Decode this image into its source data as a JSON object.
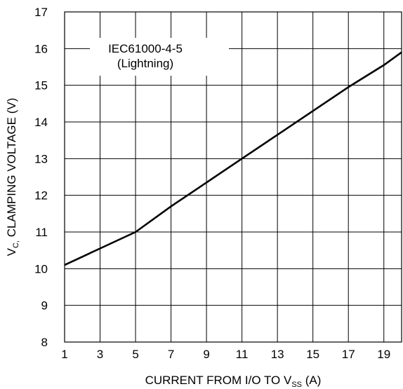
{
  "chart_data": {
    "type": "line",
    "annotation": [
      "IEC61000-4-5",
      "(Lightning)"
    ],
    "xlabel": {
      "main": "CURRENT FROM I/O TO V",
      "sub": "SS",
      "tail": " (A)"
    },
    "ylabel": {
      "main": "V",
      "sub": "C,",
      "tail": " CLAMPING VOLTAGE (V)"
    },
    "xlim": [
      1,
      20
    ],
    "ylim": [
      8,
      17
    ],
    "xticks": [
      1,
      3,
      5,
      7,
      9,
      11,
      13,
      15,
      17,
      19
    ],
    "yticks": [
      8,
      9,
      10,
      11,
      12,
      13,
      14,
      15,
      16,
      17
    ],
    "grid": true,
    "series": [
      {
        "x": [
          1,
          3,
          5,
          7,
          9,
          11,
          13,
          15,
          17,
          19,
          20
        ],
        "y": [
          10.1,
          10.55,
          11.0,
          11.7,
          12.35,
          13.0,
          13.65,
          14.3,
          14.95,
          15.55,
          15.9
        ]
      }
    ]
  }
}
